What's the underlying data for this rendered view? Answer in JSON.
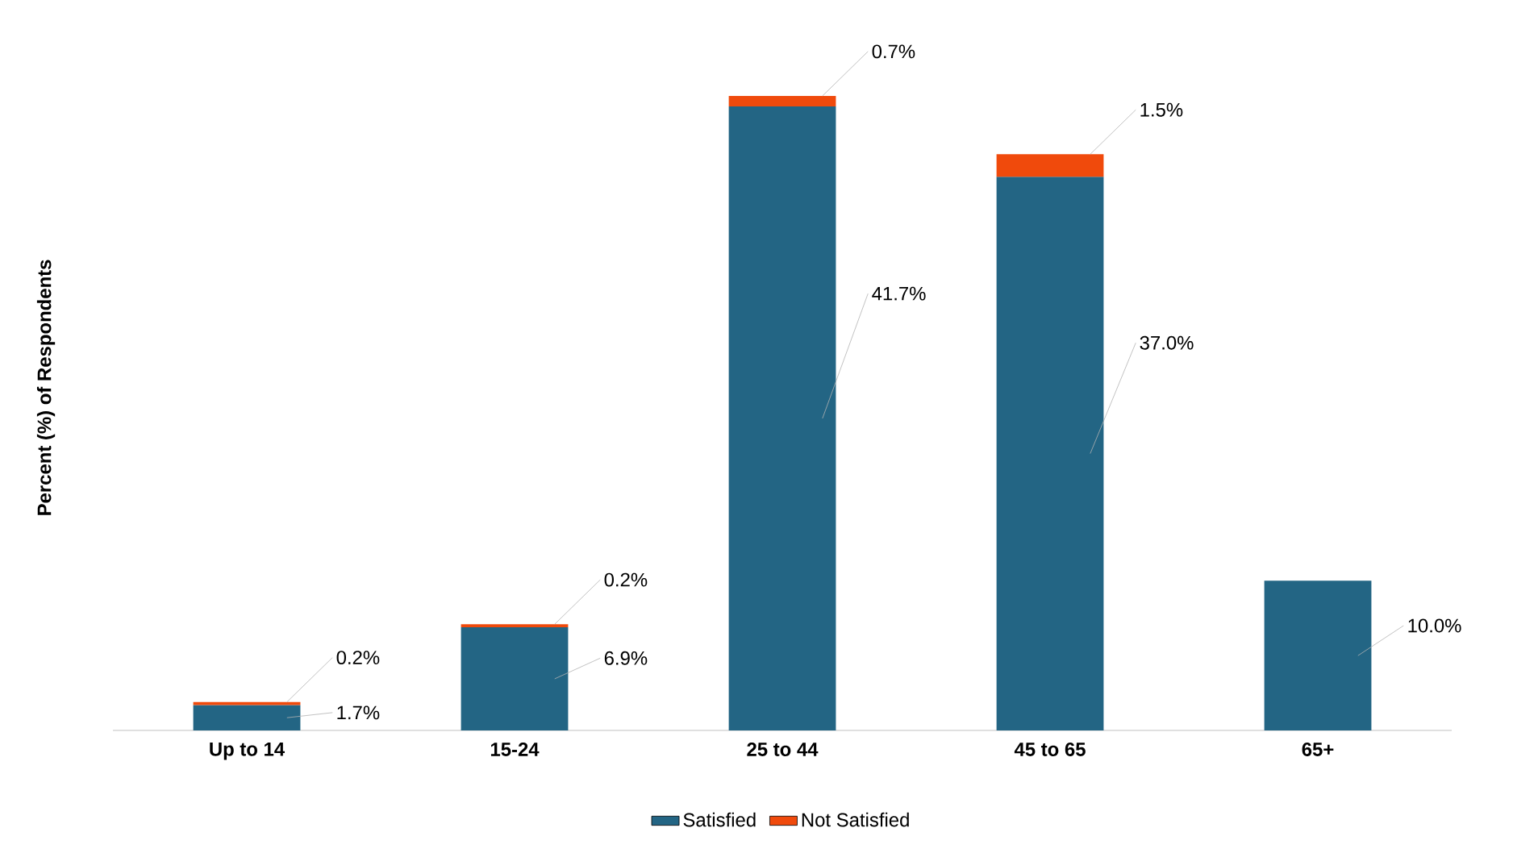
{
  "chart_data": {
    "type": "bar",
    "ylabel": "Percent (%) of Respondents",
    "stacked": true,
    "legend": "bottom",
    "categories": [
      "Up to 14",
      "15-24",
      "25 to 44",
      "45 to 65",
      "65+"
    ],
    "series": [
      {
        "name": "Satisfied",
        "color": "#236584",
        "values": [
          1.7,
          6.9,
          41.7,
          37.0,
          10.0
        ],
        "value_labels": [
          "1.7%",
          "6.9%",
          "41.7%",
          "37.0%",
          "10.0%"
        ]
      },
      {
        "name": "Not Satisfied",
        "color": "#f04a0c",
        "values": [
          0.2,
          0.2,
          0.7,
          1.5,
          null
        ],
        "value_labels": [
          "0.2%",
          "0.2%",
          "0.7%",
          "1.5%",
          null
        ]
      }
    ]
  }
}
